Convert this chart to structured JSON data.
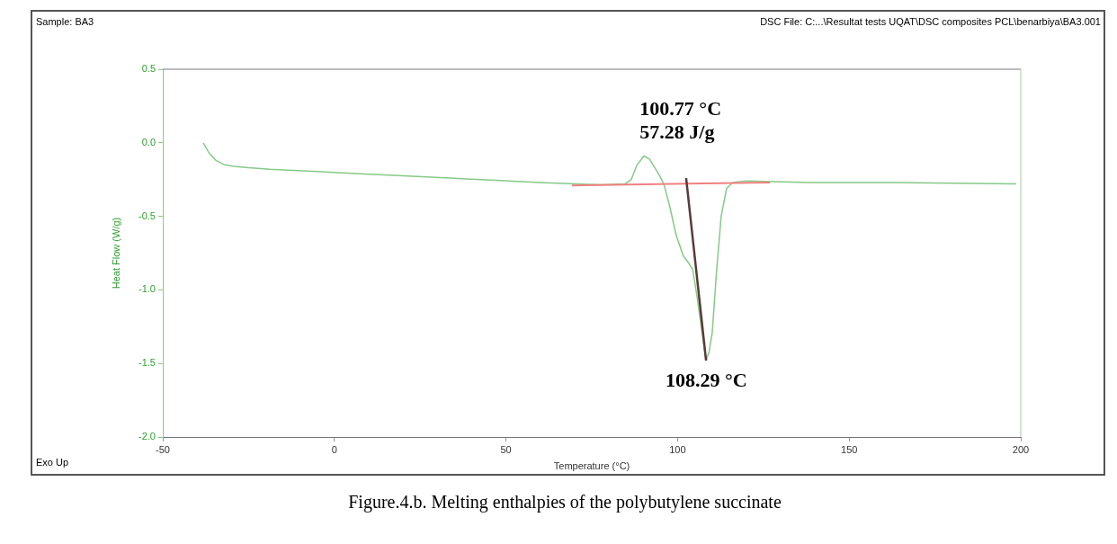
{
  "chart_data": {
    "type": "line",
    "title": "Figure.4.b. Melting enthalpies of the polybutylene succinate",
    "xlabel": "Temperature (°C)",
    "ylabel": "Heat Flow (W/g)",
    "xlim": [
      -50,
      200
    ],
    "xticks": [
      -50,
      0,
      50,
      100,
      150,
      200
    ],
    "ylim": [
      -2.0,
      0.5
    ],
    "yticks": [
      {
        "value": 0.5,
        "label": "0.5"
      },
      {
        "value": 0,
        "label": "0.0"
      },
      {
        "value": -0.5,
        "label": "-0.5"
      },
      {
        "value": -1,
        "label": "-1.0"
      },
      {
        "value": -1.5,
        "label": "-1.5"
      },
      {
        "value": -2,
        "label": "-2.0"
      }
    ],
    "grid": false,
    "legend": false,
    "marker": "none",
    "line_style": "solid",
    "series": [
      {
        "color": "#86c986",
        "x": [
          -38.2,
          -36.5,
          -34.5,
          -32,
          -29.3,
          -25,
          -18.8,
          -5,
          7.4,
          20,
          33.6,
          47,
          59.8,
          70.3,
          78,
          84.7,
          86.5,
          88.2,
          90.2,
          91.8,
          93.1,
          94.7,
          96,
          97.8,
          99.6,
          101.7,
          103,
          104.4,
          105.7,
          107.5,
          108.3,
          109.2,
          110.1,
          111.4,
          112.7,
          114.3,
          116.1,
          120,
          138.4,
          164.6,
          198.7
        ],
        "values": [
          0.0,
          -0.07,
          -0.12,
          -0.15,
          -0.16,
          -0.17,
          -0.18,
          -0.195,
          -0.21,
          -0.225,
          -0.24,
          -0.255,
          -0.27,
          -0.28,
          -0.285,
          -0.28,
          -0.25,
          -0.15,
          -0.09,
          -0.11,
          -0.16,
          -0.22,
          -0.28,
          -0.44,
          -0.63,
          -0.77,
          -0.81,
          -0.86,
          -1.05,
          -1.35,
          -1.48,
          -1.42,
          -1.29,
          -0.86,
          -0.5,
          -0.31,
          -0.27,
          -0.26,
          -0.27,
          -0.27,
          -0.28
        ]
      },
      {
        "color": "#f08080",
        "x": [
          69.2,
          126.9
        ],
        "values": [
          -0.29,
          -0.27
        ]
      },
      {
        "color": "#5a3a3a",
        "x": [
          102.5,
          108.3
        ],
        "values": [
          -0.24,
          -1.48
        ]
      }
    ],
    "annotations": [
      "Sample: BA3",
      "DSC File: C:...\\Resultat tests UQAT\\DSC composites PCL\\benarbiya\\BA3.001",
      "Exo Up",
      {
        "text": "100.77 °C\n57.28 J/g",
        "x": 100.77,
        "y": -0.27
      },
      {
        "text": "108.29 °C",
        "x": 108.29,
        "y": -1.48
      }
    ]
  }
}
